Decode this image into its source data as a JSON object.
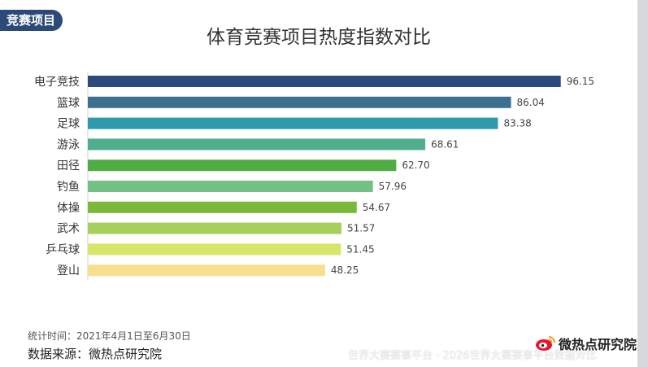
{
  "tab_label": "竞赛项目",
  "footer": {
    "period": "统计时间：2021年4月1日至6月30日",
    "source": "数据来源：微热点研究院",
    "logo_text": "微热点研究院",
    "watermark": "世界大赛赛事平台 · 2026世界大赛赛事平台数据对比"
  },
  "chart_data": {
    "type": "bar",
    "orientation": "horizontal",
    "title": "体育竞赛项目热度指数对比",
    "categories": [
      "电子竞技",
      "篮球",
      "足球",
      "游泳",
      "田径",
      "钓鱼",
      "体操",
      "武术",
      "乒乓球",
      "登山"
    ],
    "values": [
      96.15,
      86.04,
      83.38,
      68.61,
      62.7,
      57.96,
      54.67,
      51.57,
      51.45,
      48.25
    ],
    "value_labels": [
      "96.15",
      "86.04",
      "83.38",
      "68.61",
      "62.70",
      "57.96",
      "54.67",
      "51.57",
      "51.45",
      "48.25"
    ],
    "colors": [
      "#2c4a7c",
      "#3d6f8e",
      "#2e9aae",
      "#4fae8e",
      "#4fad44",
      "#73c184",
      "#7ab83a",
      "#a6cf5c",
      "#d7e56a",
      "#f8df8e"
    ],
    "xlim": [
      0,
      100
    ],
    "grid": false,
    "legend": "none"
  }
}
